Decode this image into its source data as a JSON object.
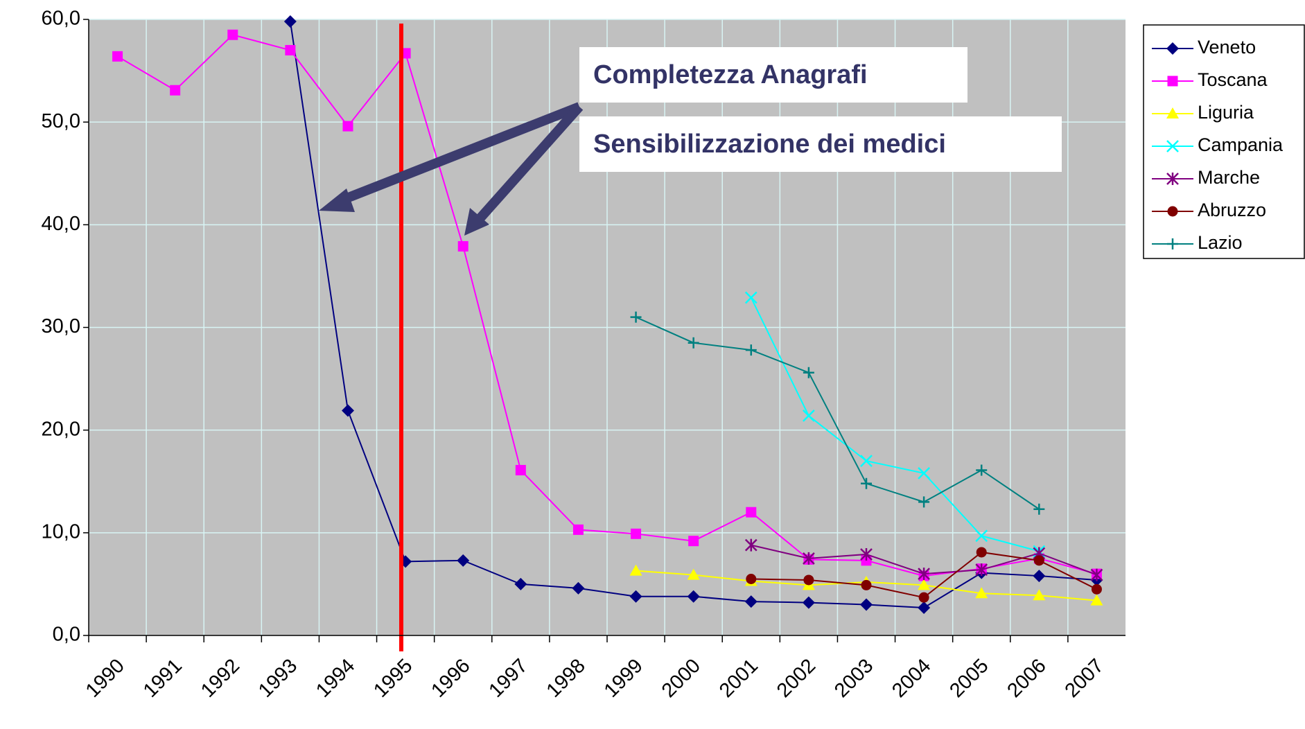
{
  "chart_data": {
    "type": "line",
    "categories": [
      "1990",
      "1991",
      "1992",
      "1993",
      "1994",
      "1995",
      "1996",
      "1997",
      "1998",
      "1999",
      "2000",
      "2001",
      "2002",
      "2003",
      "2004",
      "2005",
      "2006",
      "2007"
    ],
    "series": [
      {
        "name": "Veneto",
        "color": "#000080",
        "marker": "diamond",
        "values": [
          null,
          null,
          null,
          59.8,
          21.9,
          7.2,
          7.3,
          5.0,
          4.6,
          3.8,
          3.8,
          3.3,
          3.2,
          3.0,
          2.7,
          6.1,
          5.8,
          5.4
        ]
      },
      {
        "name": "Toscana",
        "color": "#ff00ff",
        "marker": "square",
        "values": [
          56.4,
          53.1,
          58.5,
          57.0,
          49.6,
          56.7,
          37.9,
          16.1,
          10.3,
          9.9,
          9.2,
          12.0,
          7.4,
          7.3,
          5.8,
          6.5,
          7.5,
          6.0
        ]
      },
      {
        "name": "Liguria",
        "color": "#ffff00",
        "marker": "triangle",
        "values": [
          null,
          null,
          null,
          null,
          null,
          null,
          null,
          null,
          null,
          6.3,
          5.9,
          5.3,
          4.9,
          5.2,
          4.9,
          4.1,
          3.9,
          3.4
        ]
      },
      {
        "name": "Campania",
        "color": "#00ffff",
        "marker": "x",
        "values": [
          null,
          null,
          null,
          null,
          null,
          null,
          null,
          null,
          null,
          null,
          null,
          32.9,
          21.4,
          17.0,
          15.8,
          9.7,
          8.2,
          null
        ]
      },
      {
        "name": "Marche",
        "color": "#800080",
        "marker": "star",
        "values": [
          null,
          null,
          null,
          null,
          null,
          null,
          null,
          null,
          null,
          null,
          null,
          8.8,
          7.5,
          7.9,
          6.0,
          6.4,
          8.0,
          5.9
        ]
      },
      {
        "name": "Abruzzo",
        "color": "#800000",
        "marker": "circle",
        "values": [
          null,
          null,
          null,
          null,
          null,
          null,
          null,
          null,
          null,
          null,
          null,
          5.5,
          5.4,
          4.9,
          3.7,
          8.1,
          7.3,
          4.5
        ]
      },
      {
        "name": "Lazio",
        "color": "#008080",
        "marker": "plus",
        "values": [
          null,
          null,
          null,
          null,
          null,
          null,
          null,
          null,
          null,
          31.0,
          28.5,
          27.8,
          25.6,
          14.8,
          13.0,
          16.1,
          12.3,
          null
        ]
      }
    ],
    "ylim": [
      0,
      60
    ],
    "yticks": [
      {
        "value": 0,
        "label": "0,0"
      },
      {
        "value": 10,
        "label": "10,0"
      },
      {
        "value": 20,
        "label": "20,0"
      },
      {
        "value": 30,
        "label": "30,0"
      },
      {
        "value": 40,
        "label": "40,0"
      },
      {
        "value": 50,
        "label": "50,0"
      },
      {
        "value": 60,
        "label": "60,0"
      }
    ],
    "grid": true,
    "legend": "right",
    "annotations": [
      "Completezza Anagrafi",
      "Sensibilizzazione dei medici"
    ]
  }
}
